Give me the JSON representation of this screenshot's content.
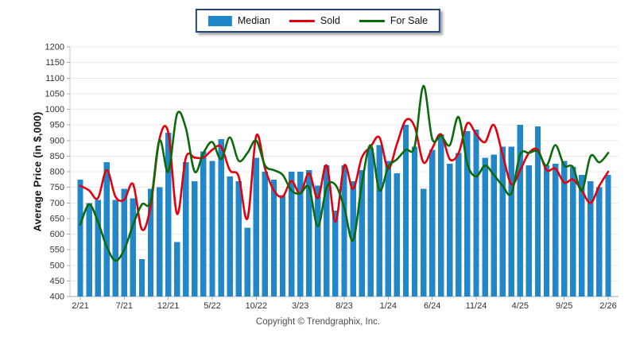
{
  "legend": {
    "items": [
      {
        "label": "Median",
        "type": "bar",
        "color": "#2187c8"
      },
      {
        "label": "Sold",
        "type": "line",
        "color": "#e3000e"
      },
      {
        "label": "For Sale",
        "type": "line",
        "color": "#0b6b0b"
      }
    ]
  },
  "footer": {
    "copyright": "Copyright © Trendgraphix, Inc."
  },
  "chart_data": {
    "type": "bar+line combo",
    "ylabel": "Average Price (in $,000)",
    "ylim": [
      400,
      1200
    ],
    "ytick_step": 50,
    "grid": true,
    "legend_position": "top-center",
    "y_tick_labels": [
      "400",
      "450",
      "500",
      "550",
      "600",
      "650",
      "700",
      "750",
      "800",
      "850",
      "900",
      "950",
      "1000",
      "1050",
      "1100",
      "1150",
      "1200"
    ],
    "x_tick_labels": [
      "2/21",
      "7/21",
      "12/21",
      "5/22",
      "10/22",
      "3/23",
      "8/23",
      "1/24",
      "6/24",
      "11/24",
      "4/25",
      "9/25",
      "2/26"
    ],
    "categories": [
      "2/21",
      "3/21",
      "4/21",
      "5/21",
      "6/21",
      "7/21",
      "8/21",
      "9/21",
      "10/21",
      "11/21",
      "12/21",
      "1/22",
      "2/22",
      "3/22",
      "4/22",
      "5/22",
      "6/22",
      "7/22",
      "8/22",
      "9/22",
      "10/22",
      "11/22",
      "12/22",
      "1/23",
      "2/23",
      "3/23",
      "4/23",
      "5/23",
      "6/23",
      "7/23",
      "8/23",
      "9/23",
      "10/23",
      "11/23",
      "12/23",
      "1/24",
      "2/24",
      "3/24",
      "4/24",
      "5/24",
      "6/24",
      "7/24",
      "8/24",
      "9/24",
      "10/24",
      "11/24",
      "12/24",
      "1/25",
      "2/25",
      "3/25",
      "4/25",
      "5/25",
      "6/25",
      "7/25",
      "8/25",
      "9/25",
      "10/25",
      "11/25",
      "12/25",
      "1/26",
      "2/26"
    ],
    "series": [
      {
        "name": "Median",
        "type": "bar",
        "color": "#2187c8",
        "values": [
          775,
          700,
          710,
          830,
          710,
          745,
          715,
          520,
          745,
          750,
          925,
          575,
          830,
          770,
          865,
          835,
          905,
          785,
          770,
          620,
          845,
          800,
          775,
          725,
          800,
          800,
          805,
          755,
          820,
          675,
          820,
          770,
          805,
          875,
          885,
          835,
          795,
          950,
          880,
          745,
          870,
          920,
          825,
          860,
          930,
          935,
          845,
          855,
          880,
          880,
          950,
          820,
          945,
          820,
          825,
          835,
          815,
          790,
          770,
          750,
          790
        ]
      },
      {
        "name": "Sold",
        "type": "line",
        "color": "#e3000e",
        "values": [
          755,
          740,
          715,
          805,
          720,
          710,
          760,
          615,
          690,
          905,
          925,
          665,
          845,
          845,
          845,
          870,
          880,
          805,
          785,
          650,
          915,
          810,
          740,
          720,
          770,
          730,
          795,
          715,
          820,
          640,
          820,
          745,
          845,
          880,
          910,
          810,
          890,
          965,
          945,
          830,
          875,
          920,
          840,
          860,
          955,
          920,
          895,
          950,
          855,
          760,
          805,
          860,
          870,
          805,
          810,
          765,
          775,
          740,
          700,
          755,
          800
        ]
      },
      {
        "name": "For Sale",
        "type": "line",
        "color": "#0b6b0b",
        "values": [
          630,
          695,
          640,
          560,
          515,
          550,
          630,
          695,
          705,
          900,
          800,
          985,
          940,
          800,
          860,
          895,
          840,
          910,
          835,
          860,
          900,
          820,
          805,
          790,
          740,
          730,
          750,
          625,
          750,
          758,
          685,
          580,
          760,
          885,
          740,
          815,
          840,
          870,
          880,
          1075,
          905,
          915,
          885,
          975,
          825,
          785,
          820,
          790,
          755,
          730,
          855,
          860,
          865,
          820,
          885,
          820,
          815,
          740,
          850,
          830,
          860
        ]
      }
    ]
  }
}
